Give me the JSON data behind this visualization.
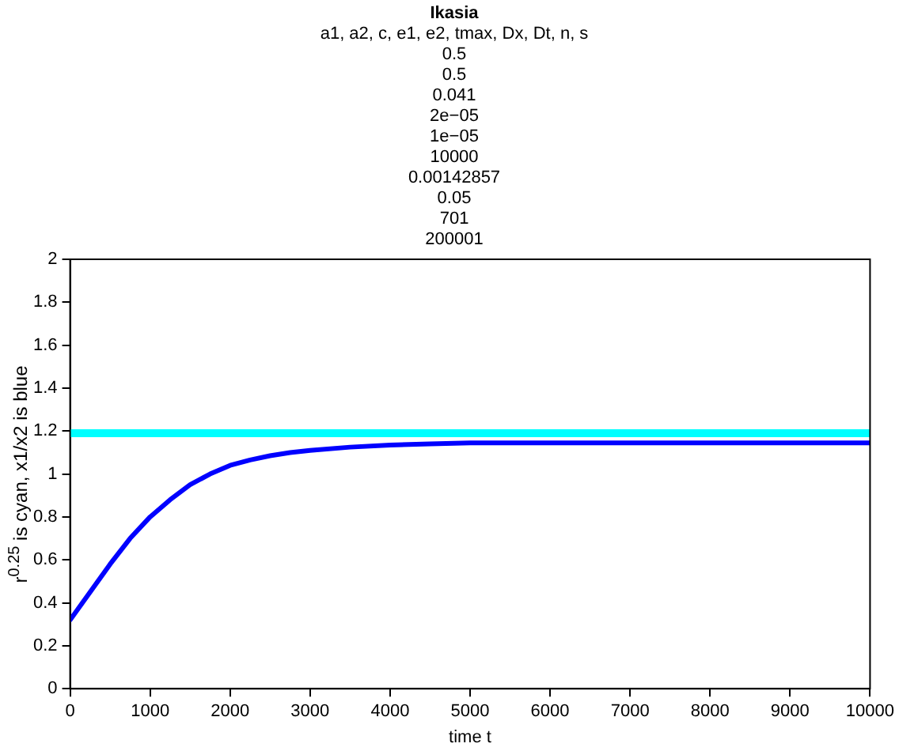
{
  "chart_data": {
    "type": "line",
    "title": "Ikasia",
    "subtitle": "a1, a2, c, e1, e2, tmax, Dx, Dt, n, s\n0.5\n0.5\n0.041\n2e−05\n1e−05\n10000\n0.00142857\n0.05\n701\n200001",
    "xlabel": "time t",
    "ylabel": "r$^{0.25}$ is cyan, x1/x2 is blue",
    "xlim": [
      0,
      10000
    ],
    "xticks": [
      0,
      1000,
      2000,
      3000,
      4000,
      5000,
      6000,
      7000,
      8000,
      9000,
      10000
    ],
    "ylim": [
      0,
      2
    ],
    "yticks": [
      0,
      0.2,
      0.4,
      0.6,
      0.8,
      1,
      1.2,
      1.4,
      1.6,
      1.8,
      2
    ],
    "grid": false,
    "legend": false,
    "marker": "none",
    "line_style": "solid",
    "series": [
      {
        "color": "#00ffff",
        "x": [
          0,
          10000
        ],
        "values": [
          1.19,
          1.19
        ]
      },
      {
        "color": "#0000ff",
        "x": [
          0,
          250,
          500,
          750,
          1000,
          1250,
          1500,
          1750,
          2000,
          2250,
          2500,
          2750,
          3000,
          3500,
          4000,
          4500,
          5000,
          6000,
          7000,
          8000,
          9000,
          10000
        ],
        "values": [
          0.32,
          0.45,
          0.58,
          0.7,
          0.8,
          0.88,
          0.95,
          1.0,
          1.04,
          1.065,
          1.085,
          1.1,
          1.11,
          1.125,
          1.135,
          1.14,
          1.145,
          1.145,
          1.145,
          1.145,
          1.145,
          1.145
        ]
      }
    ]
  }
}
